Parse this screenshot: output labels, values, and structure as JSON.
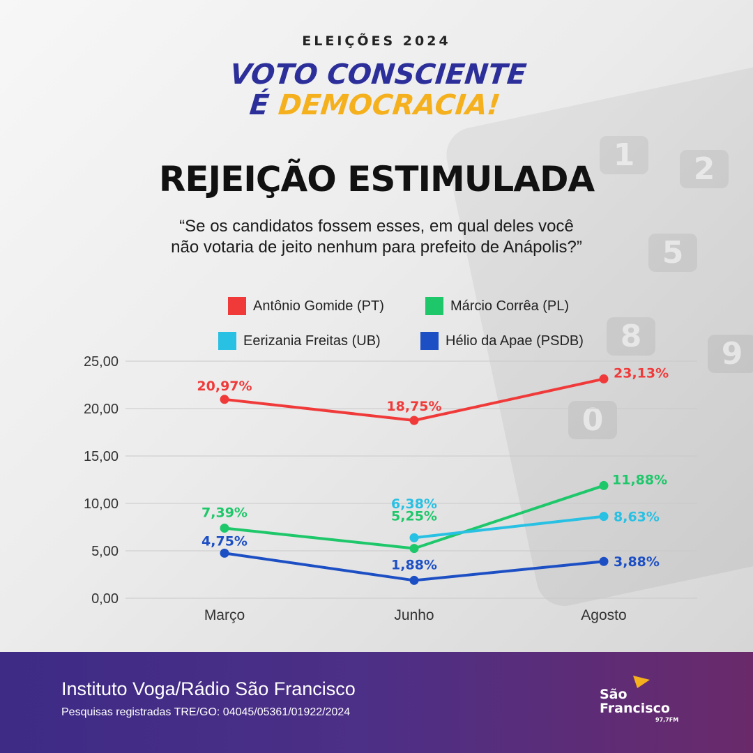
{
  "header": {
    "eyebrow": "ELEIÇÕES 2024",
    "slogan_line1": "VOTO CONSCIENTE",
    "slogan_line2a": "É ",
    "slogan_line2b": "DEMOCRACIA!"
  },
  "title": "REJEIÇÃO ESTIMULADA",
  "question": {
    "line1": "“Se os candidatos fossem esses, em qual deles você",
    "line2": "não votaria de jeito nenhum para prefeito de Anápolis?”"
  },
  "legend": [
    {
      "label": "Antônio Gomide (PT)",
      "color": "#f03a3a"
    },
    {
      "label": "Márcio Corrêa (PL)",
      "color": "#1ec76a"
    },
    {
      "label": "Eerizania Freitas (UB)",
      "color": "#28c0e3"
    },
    {
      "label": "Hélio da Apae (PSDB)",
      "color": "#1d4fc4"
    }
  ],
  "chart_data": {
    "type": "line",
    "categories": [
      "Março",
      "Junho",
      "Agosto"
    ],
    "ylim": [
      0,
      25
    ],
    "yticks": [
      "25,00",
      "20,00",
      "15,00",
      "10,00",
      "5,00",
      "0,00"
    ],
    "grid": true,
    "legend_position": "top",
    "series": [
      {
        "name": "Antônio Gomide (PT)",
        "color": "#f03a3a",
        "values": [
          20.97,
          18.75,
          23.13
        ],
        "labels": [
          "20,97%",
          "18,75%",
          "23,13%"
        ]
      },
      {
        "name": "Márcio Corrêa (PL)",
        "color": "#1ec76a",
        "values": [
          7.39,
          5.25,
          11.88
        ],
        "labels": [
          "7,39%",
          "5,25%",
          "11,88%"
        ]
      },
      {
        "name": "Eerizania Freitas (UB)",
        "color": "#28c0e3",
        "values": [
          null,
          6.38,
          8.63
        ],
        "labels": [
          "",
          "6,38%",
          "8,63%"
        ]
      },
      {
        "name": "Hélio da Apae (PSDB)",
        "color": "#1d4fc4",
        "values": [
          4.75,
          1.88,
          3.88
        ],
        "labels": [
          "4,75%",
          "1,88%",
          "3,88%"
        ]
      }
    ]
  },
  "footer": {
    "source": "Instituto Voga/Rádio São Francisco",
    "registration": "Pesquisas registradas TRE/GO: 04045/05361/01922/2024",
    "logo_line1": "São",
    "logo_line2": "Francisco",
    "logo_freq": "97,7FM"
  }
}
